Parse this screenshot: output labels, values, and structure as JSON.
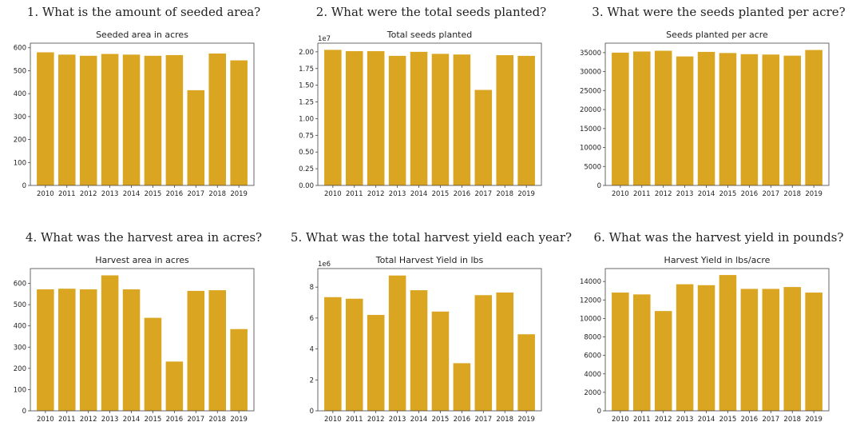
{
  "colors": {
    "bar": "#DAA520",
    "frame": "#444444",
    "background": "#ffffff"
  },
  "charts": [
    {
      "question": "1. What is the amount of seeded area?",
      "chart_data": {
        "type": "bar",
        "title": "Seeded area in acres",
        "xlabel": "",
        "ylabel": "",
        "categories": [
          "2010",
          "2011",
          "2012",
          "2013",
          "2014",
          "2015",
          "2016",
          "2017",
          "2018",
          "2019"
        ],
        "values": [
          580,
          570,
          565,
          573,
          570,
          565,
          568,
          415,
          575,
          545
        ],
        "ylim": [
          0,
          620
        ],
        "yticks": [
          0,
          100,
          200,
          300,
          400,
          500,
          600
        ],
        "ytick_labels": [
          "0",
          "100",
          "200",
          "300",
          "400",
          "500",
          "600"
        ],
        "offset_text": ""
      }
    },
    {
      "question": "2. What were the total seeds planted?",
      "chart_data": {
        "type": "bar",
        "title": "Total seeds planted",
        "xlabel": "",
        "ylabel": "",
        "categories": [
          "2010",
          "2011",
          "2012",
          "2013",
          "2014",
          "2015",
          "2016",
          "2017",
          "2018",
          "2019"
        ],
        "values": [
          20300000,
          20100000,
          20100000,
          19400000,
          20000000,
          19700000,
          19600000,
          14300000,
          19500000,
          19400000
        ],
        "ylim": [
          0,
          21300000
        ],
        "yticks": [
          0,
          2500000,
          5000000,
          7500000,
          10000000,
          12500000,
          15000000,
          17500000,
          20000000
        ],
        "ytick_labels": [
          "0.00",
          "0.25",
          "0.50",
          "0.75",
          "1.00",
          "1.25",
          "1.50",
          "1.75",
          "2.00"
        ],
        "offset_text": "1e7"
      }
    },
    {
      "question": "3. What were the seeds planted per acre?",
      "chart_data": {
        "type": "bar",
        "title": "Seeds planted per acre",
        "xlabel": "",
        "ylabel": "",
        "categories": [
          "2010",
          "2011",
          "2012",
          "2013",
          "2014",
          "2015",
          "2016",
          "2017",
          "2018",
          "2019"
        ],
        "values": [
          35000,
          35300,
          35500,
          34000,
          35200,
          34900,
          34600,
          34500,
          34200,
          35700
        ],
        "ylim": [
          0,
          37500
        ],
        "yticks": [
          0,
          5000,
          10000,
          15000,
          20000,
          25000,
          30000,
          35000
        ],
        "ytick_labels": [
          "0",
          "5000",
          "10000",
          "15000",
          "20000",
          "25000",
          "30000",
          "35000"
        ],
        "offset_text": ""
      }
    },
    {
      "question": "4. What was the harvest area in acres?",
      "chart_data": {
        "type": "bar",
        "title": "Harvest area in acres",
        "xlabel": "",
        "ylabel": "",
        "categories": [
          "2010",
          "2011",
          "2012",
          "2013",
          "2014",
          "2015",
          "2016",
          "2017",
          "2018",
          "2019"
        ],
        "values": [
          572,
          575,
          572,
          638,
          572,
          438,
          232,
          565,
          568,
          385
        ],
        "ylim": [
          0,
          670
        ],
        "yticks": [
          0,
          100,
          200,
          300,
          400,
          500,
          600
        ],
        "ytick_labels": [
          "0",
          "100",
          "200",
          "300",
          "400",
          "500",
          "600"
        ],
        "offset_text": ""
      }
    },
    {
      "question": "5. What was the total harvest yield each year?",
      "chart_data": {
        "type": "bar",
        "title": "Total Harvest Yield in lbs",
        "xlabel": "",
        "ylabel": "",
        "categories": [
          "2010",
          "2011",
          "2012",
          "2013",
          "2014",
          "2015",
          "2016",
          "2017",
          "2018",
          "2019"
        ],
        "values": [
          7350000,
          7250000,
          6200000,
          8750000,
          7800000,
          6420000,
          3080000,
          7480000,
          7650000,
          4950000
        ],
        "ylim": [
          0,
          9200000
        ],
        "yticks": [
          0,
          2000000,
          4000000,
          6000000,
          8000000
        ],
        "ytick_labels": [
          "0",
          "2",
          "4",
          "6",
          "8"
        ],
        "offset_text": "1e6"
      }
    },
    {
      "question": "6. What was the harvest yield in pounds?",
      "chart_data": {
        "type": "bar",
        "title": "Harvest Yield in lbs/acre",
        "xlabel": "",
        "ylabel": "",
        "categories": [
          "2010",
          "2011",
          "2012",
          "2013",
          "2014",
          "2015",
          "2016",
          "2017",
          "2018",
          "2019"
        ],
        "values": [
          12800,
          12600,
          10800,
          13700,
          13600,
          14700,
          13200,
          13200,
          13400,
          12800
        ],
        "ylim": [
          0,
          15400
        ],
        "yticks": [
          0,
          2000,
          4000,
          6000,
          8000,
          10000,
          12000,
          14000
        ],
        "ytick_labels": [
          "0",
          "2000",
          "4000",
          "6000",
          "8000",
          "10000",
          "12000",
          "14000"
        ],
        "offset_text": ""
      }
    }
  ]
}
